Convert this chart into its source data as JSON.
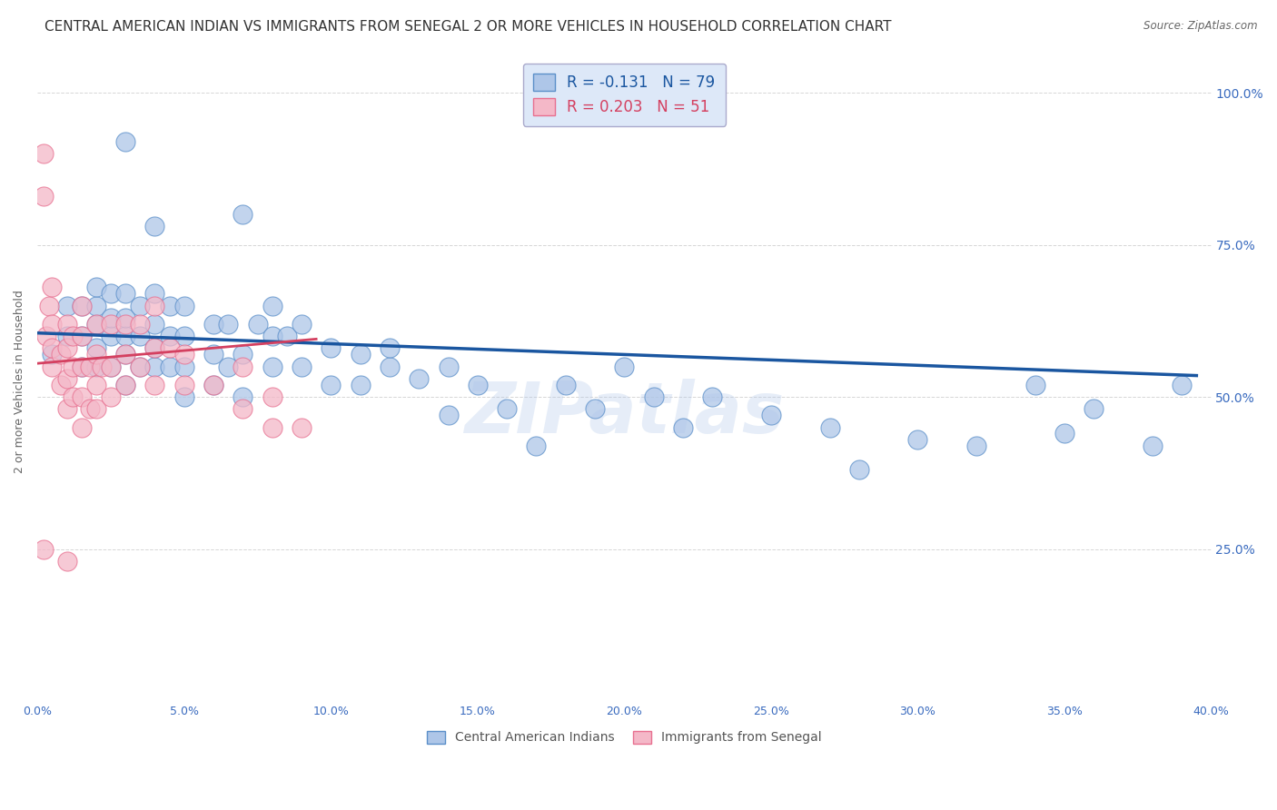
{
  "title": "CENTRAL AMERICAN INDIAN VS IMMIGRANTS FROM SENEGAL 2 OR MORE VEHICLES IN HOUSEHOLD CORRELATION CHART",
  "source": "Source: ZipAtlas.com",
  "ylabel": "2 or more Vehicles in Household",
  "xlim": [
    0.0,
    0.4
  ],
  "ylim": [
    0.0,
    1.05
  ],
  "yticks": [
    0.0,
    0.25,
    0.5,
    0.75,
    1.0
  ],
  "ytick_labels": [
    "",
    "25.0%",
    "50.0%",
    "75.0%",
    "100.0%"
  ],
  "xticks": [
    0.0,
    0.05,
    0.1,
    0.15,
    0.2,
    0.25,
    0.3,
    0.35,
    0.4
  ],
  "blue_R": -0.131,
  "blue_N": 79,
  "pink_R": 0.203,
  "pink_N": 51,
  "blue_color": "#aec6e8",
  "blue_edge_color": "#5b8fc9",
  "blue_line_color": "#1a56a0",
  "pink_color": "#f4b8c8",
  "pink_edge_color": "#e87090",
  "pink_line_color": "#d44060",
  "watermark": "ZIPatlas",
  "legend_box_color": "#dde8f8",
  "grid_color": "#cccccc",
  "bg_color": "#ffffff",
  "title_fontsize": 11,
  "axis_label_fontsize": 9,
  "tick_fontsize": 9,
  "legend_fontsize": 12,
  "blue_points_x": [
    0.005,
    0.01,
    0.01,
    0.015,
    0.015,
    0.015,
    0.02,
    0.02,
    0.02,
    0.02,
    0.02,
    0.025,
    0.025,
    0.025,
    0.025,
    0.03,
    0.03,
    0.03,
    0.03,
    0.03,
    0.035,
    0.035,
    0.035,
    0.04,
    0.04,
    0.04,
    0.04,
    0.045,
    0.045,
    0.045,
    0.05,
    0.05,
    0.05,
    0.05,
    0.06,
    0.06,
    0.06,
    0.065,
    0.065,
    0.07,
    0.07,
    0.075,
    0.08,
    0.08,
    0.08,
    0.085,
    0.09,
    0.09,
    0.1,
    0.1,
    0.11,
    0.11,
    0.12,
    0.12,
    0.13,
    0.14,
    0.14,
    0.15,
    0.16,
    0.17,
    0.18,
    0.19,
    0.2,
    0.21,
    0.22,
    0.23,
    0.25,
    0.27,
    0.28,
    0.3,
    0.32,
    0.34,
    0.35,
    0.36,
    0.38,
    0.39,
    0.03,
    0.04,
    0.07
  ],
  "blue_points_y": [
    0.57,
    0.6,
    0.65,
    0.55,
    0.6,
    0.65,
    0.55,
    0.58,
    0.62,
    0.65,
    0.68,
    0.55,
    0.6,
    0.63,
    0.67,
    0.52,
    0.57,
    0.6,
    0.63,
    0.67,
    0.55,
    0.6,
    0.65,
    0.55,
    0.58,
    0.62,
    0.67,
    0.55,
    0.6,
    0.65,
    0.5,
    0.55,
    0.6,
    0.65,
    0.52,
    0.57,
    0.62,
    0.55,
    0.62,
    0.5,
    0.57,
    0.62,
    0.55,
    0.6,
    0.65,
    0.6,
    0.55,
    0.62,
    0.52,
    0.58,
    0.52,
    0.57,
    0.55,
    0.58,
    0.53,
    0.47,
    0.55,
    0.52,
    0.48,
    0.42,
    0.52,
    0.48,
    0.55,
    0.5,
    0.45,
    0.5,
    0.47,
    0.45,
    0.38,
    0.43,
    0.42,
    0.52,
    0.44,
    0.48,
    0.42,
    0.52,
    0.92,
    0.78,
    0.8
  ],
  "pink_points_x": [
    0.002,
    0.002,
    0.003,
    0.004,
    0.005,
    0.005,
    0.005,
    0.005,
    0.008,
    0.008,
    0.01,
    0.01,
    0.01,
    0.01,
    0.012,
    0.012,
    0.012,
    0.015,
    0.015,
    0.015,
    0.015,
    0.015,
    0.018,
    0.018,
    0.02,
    0.02,
    0.02,
    0.02,
    0.022,
    0.025,
    0.025,
    0.025,
    0.03,
    0.03,
    0.03,
    0.035,
    0.035,
    0.04,
    0.04,
    0.04,
    0.045,
    0.05,
    0.05,
    0.06,
    0.07,
    0.07,
    0.08,
    0.08,
    0.09,
    0.002,
    0.01
  ],
  "pink_points_y": [
    0.83,
    0.9,
    0.6,
    0.65,
    0.55,
    0.58,
    0.62,
    0.68,
    0.52,
    0.57,
    0.48,
    0.53,
    0.58,
    0.62,
    0.5,
    0.55,
    0.6,
    0.45,
    0.5,
    0.55,
    0.6,
    0.65,
    0.48,
    0.55,
    0.48,
    0.52,
    0.57,
    0.62,
    0.55,
    0.5,
    0.55,
    0.62,
    0.52,
    0.57,
    0.62,
    0.55,
    0.62,
    0.52,
    0.58,
    0.65,
    0.58,
    0.52,
    0.57,
    0.52,
    0.48,
    0.55,
    0.45,
    0.5,
    0.45,
    0.25,
    0.23
  ],
  "blue_trend_x": [
    0.0,
    0.395
  ],
  "blue_trend_y": [
    0.605,
    0.535
  ],
  "pink_trend_x": [
    0.0,
    0.095
  ],
  "pink_trend_y": [
    0.555,
    0.595
  ]
}
